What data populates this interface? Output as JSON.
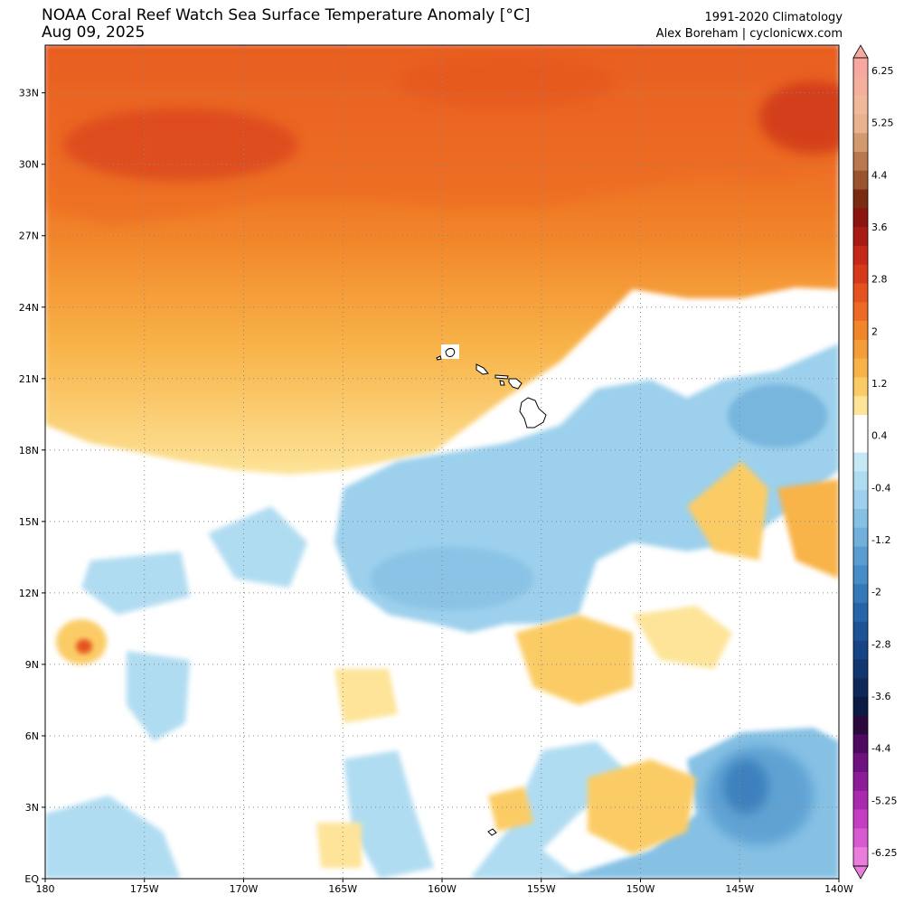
{
  "header": {
    "title": "NOAA Coral Reef Watch Sea Surface Temperature Anomaly [°C]",
    "date": "Aug 09, 2025",
    "climatology": "1991-2020 Climatology",
    "credit": "Alex Boreham | cyclonicwx.com"
  },
  "map": {
    "lon_range": [
      -180,
      -140
    ],
    "lat_range": [
      0,
      35
    ],
    "lon_ticks": [
      {
        "value": -180,
        "label": "180"
      },
      {
        "value": -175,
        "label": "175W"
      },
      {
        "value": -170,
        "label": "170W"
      },
      {
        "value": -165,
        "label": "165W"
      },
      {
        "value": -160,
        "label": "160W"
      },
      {
        "value": -155,
        "label": "155W"
      },
      {
        "value": -150,
        "label": "150W"
      },
      {
        "value": -145,
        "label": "145W"
      },
      {
        "value": -140,
        "label": "140W"
      }
    ],
    "lat_ticks": [
      {
        "value": 0,
        "label": "EQ"
      },
      {
        "value": 3,
        "label": "3N"
      },
      {
        "value": 6,
        "label": "6N"
      },
      {
        "value": 9,
        "label": "9N"
      },
      {
        "value": 12,
        "label": "12N"
      },
      {
        "value": 15,
        "label": "15N"
      },
      {
        "value": 18,
        "label": "18N"
      },
      {
        "value": 21,
        "label": "21N"
      },
      {
        "value": 24,
        "label": "24N"
      },
      {
        "value": 27,
        "label": "27N"
      },
      {
        "value": 30,
        "label": "30N"
      },
      {
        "value": 33,
        "label": "33N"
      }
    ],
    "feature": "Hawaiian Islands"
  },
  "colorbar": {
    "labels": [
      "6.25",
      "5.25",
      "4.4",
      "3.6",
      "2.8",
      "2",
      "1.2",
      "0.4",
      "-0.4",
      "-1.2",
      "-2",
      "-2.8",
      "-3.6",
      "-4.4",
      "-5.25",
      "-6.25"
    ],
    "colors": [
      "#f7a8a0",
      "#f4b09c",
      "#f1b99b",
      "#e9b28e",
      "#d49a6f",
      "#b9784d",
      "#9a5430",
      "#7a2c12",
      "#8a1410",
      "#a81a14",
      "#c42818",
      "#d63a1c",
      "#e4521f",
      "#ec6a24",
      "#f2852a",
      "#f59d38",
      "#f8b348",
      "#fbcc66",
      "#fde499",
      "#ffffff",
      "#ffffff",
      "#c6e8f6",
      "#b0dcf1",
      "#9cd0ec",
      "#86c1e4",
      "#70b0db",
      "#5a9ed1",
      "#468cc6",
      "#3478b8",
      "#2666a8",
      "#1c5496",
      "#164484",
      "#123670",
      "#0e285a",
      "#0b1b44",
      "#2a0a3a",
      "#4e0a60",
      "#6e1280",
      "#8c1c98",
      "#a82aae",
      "#c43ec2",
      "#d95ad0",
      "#ea7ddc"
    ]
  }
}
